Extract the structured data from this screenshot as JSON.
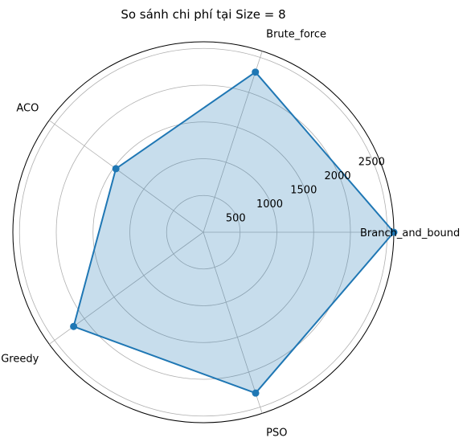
{
  "chart_data": {
    "type": "radar",
    "title": "So sánh chi phí tại Size = 8",
    "categories": [
      "Branch_and_bound",
      "Brute_force",
      "ACO",
      "Greedy",
      "PSO"
    ],
    "series": [
      {
        "values": [
          2590,
          2290,
          1470,
          2180,
          2300
        ]
      }
    ],
    "radial_ticks": [
      500,
      1000,
      1500,
      2000,
      2500
    ],
    "rlim": [
      0,
      2590
    ],
    "grid": true,
    "colors": {
      "line": "#1f77b4",
      "fill": "#1f77b4",
      "grid": "#b0b0b0"
    }
  }
}
